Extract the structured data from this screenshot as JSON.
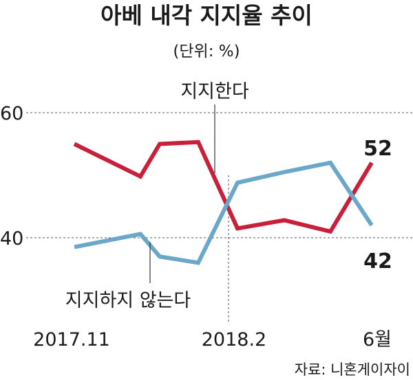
{
  "chart_data": {
    "type": "line",
    "title": "아베 내각 지지율 추이",
    "subtitle": "(단위: %)",
    "source": "자료: 니혼게이자이",
    "yticks": [
      60,
      40
    ],
    "ylim": [
      30,
      60
    ],
    "x_tick_labels": [
      "2017.11",
      "2018.2",
      "6월"
    ],
    "series": [
      {
        "name": "지지한다",
        "color": "#c8203a",
        "values": [
          55,
          49.8,
          55,
          55.3,
          41.5,
          42.8,
          41,
          52
        ],
        "end_label": "52"
      },
      {
        "name": "지지하지 않는다",
        "color": "#6aa7c8",
        "values": [
          38.5,
          40.6,
          37,
          36,
          48.8,
          50.5,
          52,
          42
        ],
        "end_label": "42"
      }
    ]
  }
}
